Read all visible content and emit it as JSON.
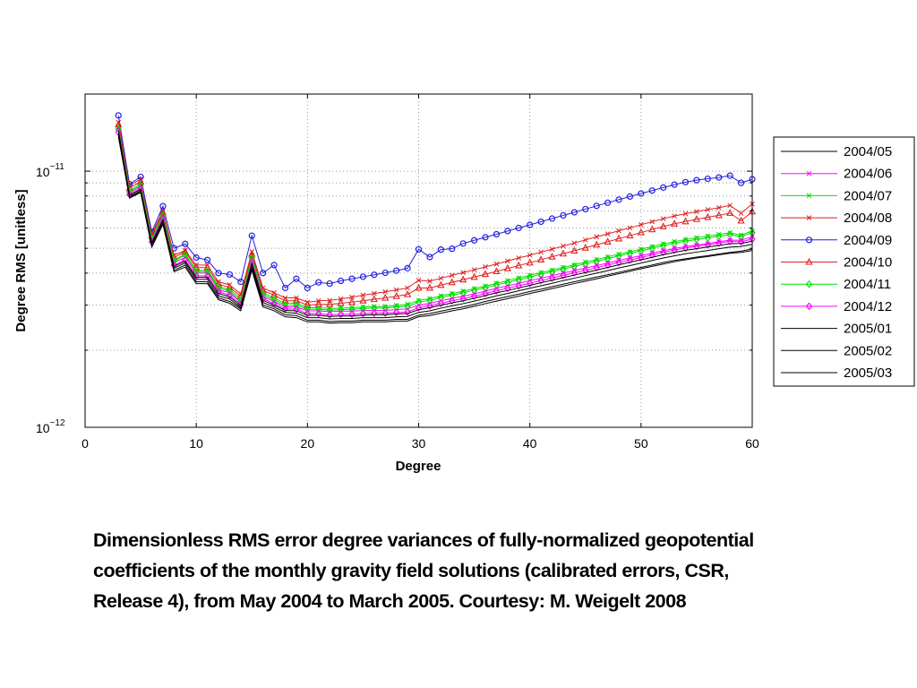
{
  "chart_data": {
    "type": "line",
    "xlabel": "Degree",
    "ylabel": "Degree RMS [unitless]",
    "xlim": [
      0,
      60
    ],
    "ylim": [
      1e-12,
      2e-11
    ],
    "y_scale": "log",
    "grid": true,
    "legend_position": "right",
    "x_ticks": [
      "0",
      "10",
      "20",
      "30",
      "40",
      "50",
      "60"
    ],
    "y_ticks": [
      {
        "value": 1e-12,
        "base": "10",
        "exp": "−12"
      },
      {
        "value": 1e-11,
        "base": "10",
        "exp": "−11"
      }
    ],
    "x": [
      3,
      4,
      5,
      6,
      7,
      8,
      9,
      10,
      11,
      12,
      13,
      14,
      15,
      16,
      17,
      18,
      19,
      20,
      21,
      22,
      23,
      24,
      25,
      26,
      27,
      28,
      29,
      30,
      31,
      32,
      33,
      34,
      35,
      36,
      37,
      38,
      39,
      40,
      41,
      42,
      43,
      44,
      45,
      46,
      47,
      48,
      49,
      50,
      51,
      52,
      53,
      54,
      55,
      56,
      57,
      58,
      59,
      60
    ],
    "series": [
      {
        "name": "2004/05",
        "color": "#000000",
        "marker": "none",
        "values": [
          1.38e-11,
          7.9e-12,
          8.3e-12,
          5.1e-12,
          6.3e-12,
          4.1e-12,
          4.3e-12,
          3.7e-12,
          3.7e-12,
          3.2e-12,
          3.1e-12,
          2.9e-12,
          4.2e-12,
          3e-12,
          2.9e-12,
          2.75e-12,
          2.73e-12,
          2.62e-12,
          2.62e-12,
          2.59e-12,
          2.6e-12,
          2.6e-12,
          2.62e-12,
          2.62e-12,
          2.62e-12,
          2.64e-12,
          2.64e-12,
          2.74e-12,
          2.78e-12,
          2.84e-12,
          2.9e-12,
          2.95e-12,
          3.02e-12,
          3.1e-12,
          3.17e-12,
          3.24e-12,
          3.31e-12,
          3.39e-12,
          3.46e-12,
          3.54e-12,
          3.62e-12,
          3.7e-12,
          3.78e-12,
          3.86e-12,
          3.94e-12,
          4.03e-12,
          4.12e-12,
          4.21e-12,
          4.3e-12,
          4.4e-12,
          4.48e-12,
          4.55e-12,
          4.62e-12,
          4.68e-12,
          4.75e-12,
          4.82e-12,
          4.87e-12,
          4.97e-12
        ]
      },
      {
        "name": "2004/06",
        "color": "#ff00ff",
        "marker": "x",
        "values": [
          1.48e-11,
          8.2e-12,
          8.7e-12,
          5.4e-12,
          6.6e-12,
          4.4e-12,
          4.6e-12,
          4e-12,
          4e-12,
          3.45e-12,
          3.35e-12,
          3.08e-12,
          4.5e-12,
          3.25e-12,
          3.1e-12,
          2.95e-12,
          2.95e-12,
          2.85e-12,
          2.85e-12,
          2.83e-12,
          2.84e-12,
          2.84e-12,
          2.86e-12,
          2.86e-12,
          2.86e-12,
          2.88e-12,
          2.9e-12,
          3e-12,
          3.05e-12,
          3.12e-12,
          3.19e-12,
          3.25e-12,
          3.32e-12,
          3.4e-12,
          3.49e-12,
          3.57e-12,
          3.65e-12,
          3.74e-12,
          3.82e-12,
          3.91e-12,
          4e-12,
          4.09e-12,
          4.19e-12,
          4.28e-12,
          4.38e-12,
          4.48e-12,
          4.58e-12,
          4.68e-12,
          4.79e-12,
          4.89e-12,
          4.99e-12,
          5.08e-12,
          5.15e-12,
          5.22e-12,
          5.3e-12,
          5.38e-12,
          5.37e-12,
          5.55e-12
        ]
      },
      {
        "name": "2004/07",
        "color": "#00e000",
        "marker": "x",
        "values": [
          1.5e-11,
          8.4e-12,
          8.9e-12,
          5.5e-12,
          6.8e-12,
          4.5e-12,
          4.75e-12,
          4.1e-12,
          4.1e-12,
          3.55e-12,
          3.45e-12,
          3.18e-12,
          4.65e-12,
          3.35e-12,
          3.2e-12,
          3.05e-12,
          3.05e-12,
          2.93e-12,
          2.93e-12,
          2.91e-12,
          2.92e-12,
          2.93e-12,
          2.95e-12,
          2.96e-12,
          2.96e-12,
          2.99e-12,
          3.02e-12,
          3.13e-12,
          3.18e-12,
          3.26e-12,
          3.33e-12,
          3.4e-12,
          3.48e-12,
          3.56e-12,
          3.65e-12,
          3.74e-12,
          3.83e-12,
          3.92e-12,
          4.02e-12,
          4.11e-12,
          4.21e-12,
          4.31e-12,
          4.42e-12,
          4.52e-12,
          4.63e-12,
          4.74e-12,
          4.85e-12,
          4.96e-12,
          5.08e-12,
          5.2e-12,
          5.31e-12,
          5.41e-12,
          5.5e-12,
          5.58e-12,
          5.66e-12,
          5.75e-12,
          5.62e-12,
          5.85e-12
        ]
      },
      {
        "name": "2004/08",
        "color": "#e02020",
        "marker": "x",
        "values": [
          1.55e-11,
          8.8e-12,
          9.3e-12,
          5.7e-12,
          7e-12,
          4.7e-12,
          4.9e-12,
          4.3e-12,
          4.3e-12,
          3.7e-12,
          3.6e-12,
          3.32e-12,
          4.85e-12,
          3.5e-12,
          3.35e-12,
          3.2e-12,
          3.2e-12,
          3.08e-12,
          3.12e-12,
          3.13e-12,
          3.17e-12,
          3.22e-12,
          3.28e-12,
          3.33e-12,
          3.38e-12,
          3.44e-12,
          3.5e-12,
          3.75e-12,
          3.72e-12,
          3.82e-12,
          3.92e-12,
          4.02e-12,
          4.12e-12,
          4.23e-12,
          4.34e-12,
          4.46e-12,
          4.58e-12,
          4.7e-12,
          4.83e-12,
          4.96e-12,
          5.1e-12,
          5.24e-12,
          5.39e-12,
          5.54e-12,
          5.69e-12,
          5.85e-12,
          6.01e-12,
          6.18e-12,
          6.35e-12,
          6.52e-12,
          6.68e-12,
          6.82e-12,
          6.95e-12,
          7.08e-12,
          7.2e-12,
          7.35e-12,
          6.85e-12,
          7.45e-12
        ]
      },
      {
        "name": "2004/09",
        "color": "#2020e0",
        "marker": "o",
        "values": [
          1.65e-11,
          8.9e-12,
          9.5e-12,
          5.8e-12,
          7.3e-12,
          5e-12,
          5.2e-12,
          4.6e-12,
          4.5e-12,
          4e-12,
          3.95e-12,
          3.7e-12,
          5.6e-12,
          4e-12,
          4.3e-12,
          3.5e-12,
          3.8e-12,
          3.5e-12,
          3.68e-12,
          3.64e-12,
          3.73e-12,
          3.8e-12,
          3.87e-12,
          3.94e-12,
          4.01e-12,
          4.09e-12,
          4.18e-12,
          4.95e-12,
          4.62e-12,
          4.94e-12,
          4.98e-12,
          5.22e-12,
          5.37e-12,
          5.52e-12,
          5.67e-12,
          5.84e-12,
          6e-12,
          6.17e-12,
          6.35e-12,
          6.53e-12,
          6.72e-12,
          6.91e-12,
          7.11e-12,
          7.32e-12,
          7.53e-12,
          7.74e-12,
          7.96e-12,
          8.18e-12,
          8.4e-12,
          8.63e-12,
          8.86e-12,
          9.06e-12,
          9.22e-12,
          9.34e-12,
          9.45e-12,
          9.6e-12,
          9e-12,
          9.3e-12
        ]
      },
      {
        "name": "2004/10",
        "color": "#e02020",
        "marker": "^",
        "values": [
          1.52e-11,
          8.6e-12,
          9.1e-12,
          5.6e-12,
          6.9e-12,
          4.6e-12,
          4.85e-12,
          4.2e-12,
          4.2e-12,
          3.62e-12,
          3.52e-12,
          3.25e-12,
          4.75e-12,
          3.42e-12,
          3.28e-12,
          3.12e-12,
          3.12e-12,
          3e-12,
          3.02e-12,
          3.02e-12,
          3.05e-12,
          3.08e-12,
          3.12e-12,
          3.16e-12,
          3.2e-12,
          3.25e-12,
          3.3e-12,
          3.5e-12,
          3.5e-12,
          3.59e-12,
          3.68e-12,
          3.77e-12,
          3.86e-12,
          3.96e-12,
          4.06e-12,
          4.17e-12,
          4.28e-12,
          4.39e-12,
          4.51e-12,
          4.63e-12,
          4.76e-12,
          4.89e-12,
          5.02e-12,
          5.16e-12,
          5.3e-12,
          5.45e-12,
          5.6e-12,
          5.76e-12,
          5.92e-12,
          6.08e-12,
          6.23e-12,
          6.36e-12,
          6.49e-12,
          6.61e-12,
          6.72e-12,
          6.86e-12,
          6.4e-12,
          6.95e-12
        ]
      },
      {
        "name": "2004/11",
        "color": "#00e000",
        "marker": "d",
        "values": [
          1.46e-11,
          8.3e-12,
          8.8e-12,
          5.45e-12,
          6.7e-12,
          4.45e-12,
          4.7e-12,
          4.05e-12,
          4.05e-12,
          3.5e-12,
          3.4e-12,
          3.12e-12,
          4.58e-12,
          3.3e-12,
          3.15e-12,
          3e-12,
          3e-12,
          2.89e-12,
          2.89e-12,
          2.87e-12,
          2.88e-12,
          2.89e-12,
          2.91e-12,
          2.92e-12,
          2.92e-12,
          2.95e-12,
          2.97e-12,
          3.08e-12,
          3.13e-12,
          3.21e-12,
          3.28e-12,
          3.35e-12,
          3.43e-12,
          3.51e-12,
          3.6e-12,
          3.68e-12,
          3.77e-12,
          3.86e-12,
          3.96e-12,
          4.05e-12,
          4.15e-12,
          4.25e-12,
          4.35e-12,
          4.45e-12,
          4.56e-12,
          4.67e-12,
          4.78e-12,
          4.89e-12,
          5e-12,
          5.12e-12,
          5.23e-12,
          5.33e-12,
          5.41e-12,
          5.49e-12,
          5.57e-12,
          5.66e-12,
          5.55e-12,
          5.76e-12
        ]
      },
      {
        "name": "2004/12",
        "color": "#ff00ff",
        "marker": "d",
        "values": [
          1.42e-11,
          8.1e-12,
          8.55e-12,
          5.3e-12,
          6.5e-12,
          4.3e-12,
          4.5e-12,
          3.9e-12,
          3.9e-12,
          3.38e-12,
          3.28e-12,
          3.02e-12,
          4.4e-12,
          3.18e-12,
          3.04e-12,
          2.9e-12,
          2.89e-12,
          2.78e-12,
          2.78e-12,
          2.75e-12,
          2.76e-12,
          2.76e-12,
          2.78e-12,
          2.79e-12,
          2.79e-12,
          2.81e-12,
          2.82e-12,
          2.93e-12,
          2.98e-12,
          3.05e-12,
          3.12e-12,
          3.18e-12,
          3.25e-12,
          3.33e-12,
          3.41e-12,
          3.49e-12,
          3.57e-12,
          3.65e-12,
          3.74e-12,
          3.83e-12,
          3.92e-12,
          4.01e-12,
          4.1e-12,
          4.2e-12,
          4.3e-12,
          4.4e-12,
          4.5e-12,
          4.6e-12,
          4.71e-12,
          4.82e-12,
          4.92e-12,
          5.01e-12,
          5.09e-12,
          5.16e-12,
          5.24e-12,
          5.32e-12,
          5.3e-12,
          5.43e-12
        ]
      },
      {
        "name": "2005/01",
        "color": "#000000",
        "marker": "none",
        "values": [
          1.44e-11,
          8.05e-12,
          8.5e-12,
          5.25e-12,
          6.45e-12,
          4.25e-12,
          4.45e-12,
          3.85e-12,
          3.85e-12,
          3.33e-12,
          3.23e-12,
          2.98e-12,
          4.35e-12,
          3.13e-12,
          3e-12,
          2.86e-12,
          2.85e-12,
          2.74e-12,
          2.74e-12,
          2.71e-12,
          2.72e-12,
          2.72e-12,
          2.74e-12,
          2.75e-12,
          2.75e-12,
          2.77e-12,
          2.78e-12,
          2.88e-12,
          2.93e-12,
          3e-12,
          3.06e-12,
          3.12e-12,
          3.19e-12,
          3.27e-12,
          3.35e-12,
          3.42e-12,
          3.5e-12,
          3.58e-12,
          3.67e-12,
          3.75e-12,
          3.84e-12,
          3.93e-12,
          4.02e-12,
          4.11e-12,
          4.21e-12,
          4.31e-12,
          4.41e-12,
          4.51e-12,
          4.61e-12,
          4.72e-12,
          4.82e-12,
          4.91e-12,
          4.98e-12,
          5.06e-12,
          5.13e-12,
          5.21e-12,
          5.22e-12,
          5.33e-12
        ]
      },
      {
        "name": "2005/02",
        "color": "#000000",
        "marker": "none",
        "values": [
          1.4e-11,
          7.95e-12,
          8.4e-12,
          5.18e-12,
          6.38e-12,
          4.18e-12,
          4.38e-12,
          3.78e-12,
          3.78e-12,
          3.26e-12,
          3.17e-12,
          2.93e-12,
          4.28e-12,
          3.07e-12,
          2.95e-12,
          2.81e-12,
          2.79e-12,
          2.68e-12,
          2.68e-12,
          2.65e-12,
          2.66e-12,
          2.66e-12,
          2.68e-12,
          2.68e-12,
          2.68e-12,
          2.7e-12,
          2.71e-12,
          2.81e-12,
          2.85e-12,
          2.92e-12,
          2.98e-12,
          3.04e-12,
          3.11e-12,
          3.18e-12,
          3.26e-12,
          3.33e-12,
          3.41e-12,
          3.49e-12,
          3.57e-12,
          3.65e-12,
          3.74e-12,
          3.82e-12,
          3.91e-12,
          4e-12,
          4.09e-12,
          4.19e-12,
          4.28e-12,
          4.38e-12,
          4.48e-12,
          4.58e-12,
          4.67e-12,
          4.76e-12,
          4.83e-12,
          4.9e-12,
          4.98e-12,
          5.05e-12,
          5.08e-12,
          5.18e-12
        ]
      },
      {
        "name": "2005/03",
        "color": "#000000",
        "marker": "none",
        "values": [
          1.36e-11,
          7.85e-12,
          8.25e-12,
          5.05e-12,
          6.2e-12,
          4.05e-12,
          4.22e-12,
          3.64e-12,
          3.64e-12,
          3.15e-12,
          3.05e-12,
          2.85e-12,
          4.1e-12,
          2.95e-12,
          2.85e-12,
          2.7e-12,
          2.68e-12,
          2.58e-12,
          2.58e-12,
          2.55e-12,
          2.56e-12,
          2.56e-12,
          2.58e-12,
          2.58e-12,
          2.58e-12,
          2.6e-12,
          2.6e-12,
          2.7e-12,
          2.73e-12,
          2.79e-12,
          2.85e-12,
          2.9e-12,
          2.97e-12,
          3.04e-12,
          3.11e-12,
          3.18e-12,
          3.25e-12,
          3.33e-12,
          3.4e-12,
          3.48e-12,
          3.56e-12,
          3.64e-12,
          3.72e-12,
          3.8e-12,
          3.89e-12,
          3.98e-12,
          4.07e-12,
          4.16e-12,
          4.25e-12,
          4.34e-12,
          4.43e-12,
          4.51e-12,
          4.58e-12,
          4.64e-12,
          4.71e-12,
          4.78e-12,
          4.82e-12,
          4.9e-12
        ]
      }
    ]
  },
  "caption": {
    "line1": "Dimensionless RMS error degree variances of fully-normalized geopotential",
    "line2": "coefficients of the monthly gravity field solutions (calibrated errors, CSR,",
    "line3": "Release 4), from May 2004 to March 2005.  Courtesy:  M. Weigelt 2008"
  }
}
